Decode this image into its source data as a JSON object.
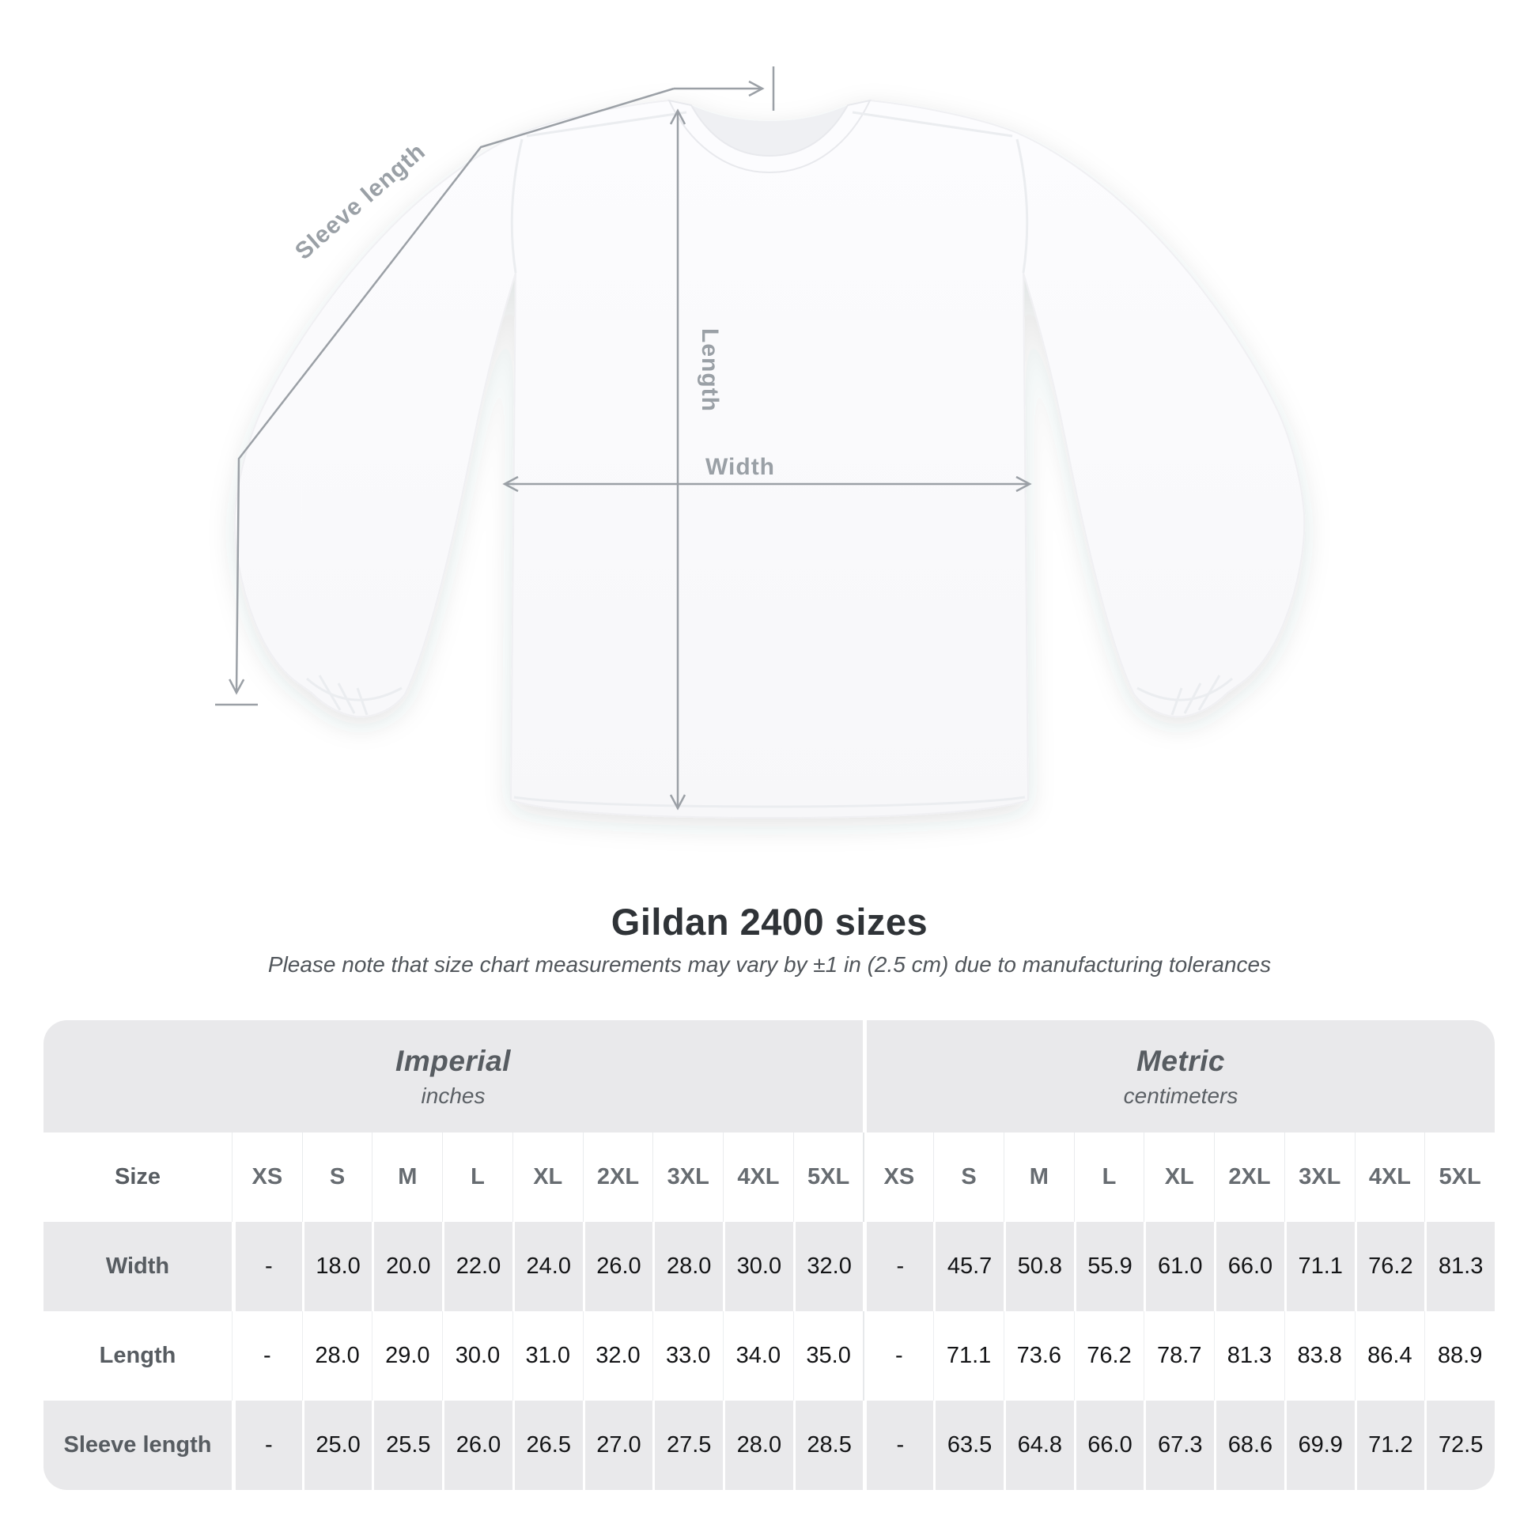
{
  "figure": {
    "sleeve_length_label": "Sleeve length",
    "length_label": "Length",
    "width_label": "Width"
  },
  "heading": {
    "title": "Gildan 2400 sizes",
    "note": "Please note that size chart measurements may vary by ±1 in (2.5 cm) due to manufacturing tolerances"
  },
  "chart_data": {
    "type": "table",
    "title": "Gildan 2400 sizes",
    "note": "Please note that size chart measurements may vary by ±1 in (2.5 cm) due to manufacturing tolerances",
    "corner_label": "Size",
    "unit_groups": [
      {
        "label": "Imperial",
        "sublabel": "inches"
      },
      {
        "label": "Metric",
        "sublabel": "centimeters"
      }
    ],
    "size_columns": [
      "XS",
      "S",
      "M",
      "L",
      "XL",
      "2XL",
      "3XL",
      "4XL",
      "5XL",
      "XS",
      "S",
      "M",
      "L",
      "XL",
      "2XL",
      "3XL",
      "4XL",
      "5XL"
    ],
    "rows": [
      {
        "label": "Width",
        "values": [
          "-",
          "18.0",
          "20.0",
          "22.0",
          "24.0",
          "26.0",
          "28.0",
          "30.0",
          "32.0",
          "-",
          "45.7",
          "50.8",
          "55.9",
          "61.0",
          "66.0",
          "71.1",
          "76.2",
          "81.3"
        ]
      },
      {
        "label": "Length",
        "values": [
          "-",
          "28.0",
          "29.0",
          "30.0",
          "31.0",
          "32.0",
          "33.0",
          "34.0",
          "35.0",
          "-",
          "71.1",
          "73.6",
          "76.2",
          "78.7",
          "81.3",
          "83.8",
          "86.4",
          "88.9"
        ]
      },
      {
        "label": "Sleeve length",
        "values": [
          "-",
          "25.0",
          "25.5",
          "26.0",
          "26.5",
          "27.0",
          "27.5",
          "28.0",
          "28.5",
          "-",
          "63.5",
          "64.8",
          "66.0",
          "67.3",
          "68.6",
          "69.9",
          "71.2",
          "72.5"
        ]
      }
    ],
    "measurement_annotations": [
      "Sleeve length",
      "Length",
      "Width"
    ]
  },
  "colors": {
    "annotation_gray": "#9aa0a6",
    "table_band_gray": "#e9e9eb",
    "title_text": "#2f3337",
    "number_text": "#131416",
    "label_text": "#575c61",
    "shirt_fill": "#fbfbfd"
  }
}
